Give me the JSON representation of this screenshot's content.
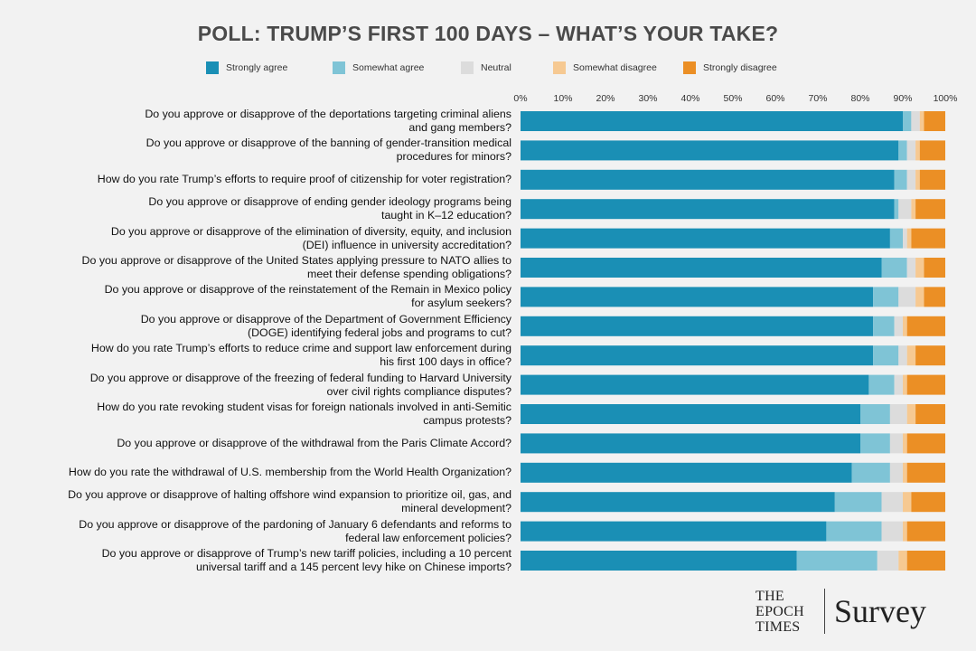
{
  "chart_data": {
    "type": "bar",
    "orientation": "horizontal",
    "stacked": true,
    "title": "POLL: TRUMP’S FIRST 100 DAYS – WHAT’S YOUR TAKE?",
    "xlim": [
      0,
      100
    ],
    "x_ticks": [
      "0%",
      "10%",
      "20%",
      "30%",
      "40%",
      "50%",
      "60%",
      "70%",
      "80%",
      "90%",
      "100%"
    ],
    "legend_position": "top",
    "categories": [
      "Do you approve or disapprove of the deportations targeting criminal aliens\nand gang members?",
      "Do you approve or disapprove of the banning of gender-transition medical\nprocedures for minors?",
      "How do you rate Trump’s efforts to require proof of citizenship for voter registration?",
      "Do you approve or disapprove of ending gender ideology programs being\ntaught in K–12 education?",
      "Do you approve or disapprove of the elimination of diversity, equity, and inclusion\n(DEI) influence in university accreditation?",
      "Do you approve or disapprove of the United States applying pressure to NATO allies to\nmeet their defense spending obligations?",
      "Do you approve or disapprove of the reinstatement of the Remain in Mexico policy\nfor asylum seekers?",
      "Do you approve or disapprove of the Department of Government Efficiency\n(DOGE) identifying federal jobs and programs to cut?",
      "How do you rate Trump’s efforts to reduce crime and support law enforcement during\nhis first 100 days in office?",
      "Do you approve or disapprove of the freezing of federal funding to Harvard University\nover civil rights compliance disputes?",
      "How do you rate revoking student visas for foreign nationals involved in anti-Semitic\ncampus protests?",
      "Do you approve or disapprove of the withdrawal from the Paris Climate Accord?",
      "How do you rate the withdrawal of U.S. membership from the World Health Organization?",
      "Do you approve or disapprove of halting offshore wind expansion to prioritize oil, gas, and\nmineral development?",
      "Do you approve or disapprove of the pardoning of January 6 defendants and reforms to\nfederal law enforcement policies?",
      "Do you approve or disapprove of Trump’s new tariff policies, including a 10 percent\nuniversal tariff and a 145 percent levy hike on Chinese imports?"
    ],
    "series": [
      {
        "name": "Strongly agree",
        "color": "#1a8fb5",
        "values": [
          90,
          89,
          88,
          88,
          87,
          85,
          83,
          83,
          83,
          82,
          80,
          80,
          78,
          74,
          72,
          65
        ]
      },
      {
        "name": "Somewhat agree",
        "color": "#7fc4d6",
        "values": [
          2,
          2,
          3,
          1,
          3,
          6,
          6,
          5,
          6,
          6,
          7,
          7,
          9,
          11,
          13,
          19
        ]
      },
      {
        "name": "Neutral",
        "color": "#dcdcdc",
        "values": [
          2,
          2,
          2,
          3,
          1,
          2,
          4,
          2,
          2,
          2,
          4,
          3,
          3,
          5,
          5,
          5
        ]
      },
      {
        "name": "Somewhat disagree",
        "color": "#f6c992",
        "values": [
          1,
          1,
          1,
          1,
          1,
          2,
          2,
          1,
          2,
          1,
          2,
          1,
          1,
          2,
          1,
          2
        ]
      },
      {
        "name": "Strongly disagree",
        "color": "#eb8f25",
        "values": [
          5,
          6,
          6,
          7,
          8,
          5,
          5,
          9,
          7,
          9,
          7,
          9,
          9,
          8,
          9,
          9
        ]
      }
    ]
  },
  "logo": {
    "line1": "THE",
    "line2": "EPOCH",
    "line3": "TIMES",
    "brand": "Survey"
  }
}
